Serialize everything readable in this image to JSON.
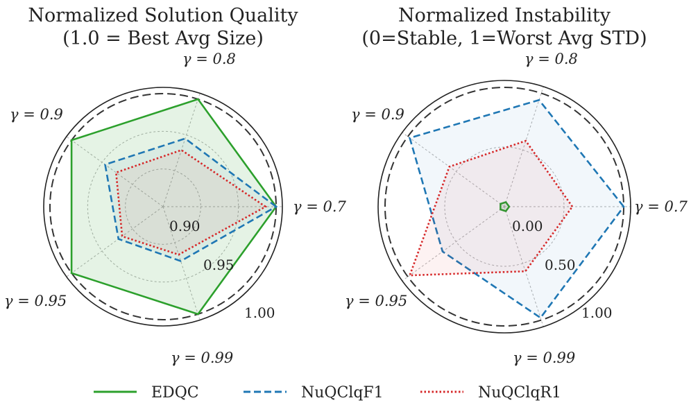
{
  "chart_data": [
    {
      "type": "radar",
      "title": "Normalized Solution Quality",
      "subtitle": "(1.0 = Best Avg Size)",
      "axes": [
        "γ = 0.7",
        "γ = 0.8",
        "γ = 0.9",
        "γ = 0.95",
        "γ = 0.99"
      ],
      "rlim": [
        0.85,
        1.0
      ],
      "tick_values": [
        0.9,
        0.95,
        1.0
      ],
      "tick_labels": [
        "0.90",
        "0.95",
        "1.00"
      ],
      "series": [
        {
          "name": "EDQC",
          "values": [
            1.0,
            1.0,
            1.0,
            1.0,
            1.0
          ]
        },
        {
          "name": "NuQClqF1",
          "values": [
            1.0,
            0.945,
            0.945,
            0.923,
            0.926
          ]
        },
        {
          "name": "NuQClqR1",
          "values": [
            0.986,
            0.929,
            0.927,
            0.917,
            0.917
          ]
        }
      ]
    },
    {
      "type": "radar",
      "title": "Normalized Instability",
      "subtitle": "(0=Stable, 1=Worst Avg STD)",
      "axes": [
        "γ = 0.7",
        "γ = 0.8",
        "γ = 0.9",
        "γ = 0.95",
        "γ = 0.99"
      ],
      "rlim": [
        0.0,
        1.0
      ],
      "tick_values": [
        0.0,
        0.5,
        1.0
      ],
      "tick_labels": [
        "0.00",
        "0.50",
        "1.00"
      ],
      "series": [
        {
          "name": "EDQC",
          "values": [
            0.04,
            0.04,
            0.04,
            0.04,
            0.04
          ]
        },
        {
          "name": "NuQClqF1",
          "values": [
            1.0,
            0.94,
            0.98,
            0.64,
            0.98
          ]
        },
        {
          "name": "NuQClqR1",
          "values": [
            0.57,
            0.58,
            0.57,
            0.98,
            0.57
          ]
        }
      ]
    }
  ],
  "colors": {
    "EDQC": "#2ca02c",
    "NuQClqF1": "#1f77b4",
    "NuQClqR1": "#d62728"
  },
  "legend": {
    "position": "bottom-center",
    "items": [
      "EDQC",
      "NuQClqF1",
      "NuQClqR1"
    ]
  }
}
